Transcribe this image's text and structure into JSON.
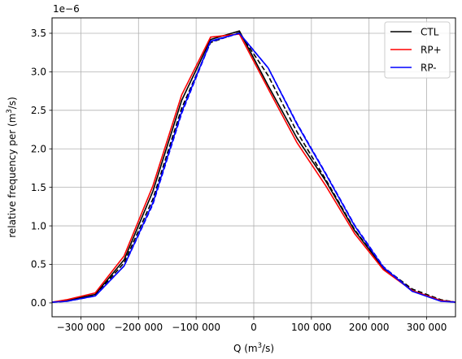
{
  "chart_data": {
    "type": "line",
    "title": "",
    "xlabel": "Q (m",
    "xlabel_sup": "3",
    "xlabel_tail": "/s)",
    "ylabel": "relative frequency per (m",
    "ylabel_sup": "3",
    "ylabel_tail": "/s)",
    "y_offset_label": "1e−6",
    "xlim": [
      -350000,
      350000
    ],
    "ylim": [
      -0.18,
      3.7
    ],
    "xticks": [
      -300000,
      -200000,
      -100000,
      0,
      100000,
      200000,
      300000
    ],
    "xtick_labels": [
      "−300 000",
      "−200 000",
      "−100 000",
      "0",
      "100 000",
      "200 000",
      "300 000"
    ],
    "yticks": [
      0.0,
      0.5,
      1.0,
      1.5,
      2.0,
      2.5,
      3.0,
      3.5
    ],
    "ytick_labels": [
      "0.0",
      "0.5",
      "1.0",
      "1.5",
      "2.0",
      "2.5",
      "3.0",
      "3.5"
    ],
    "grid": true,
    "legend_position": "top-right",
    "series": [
      {
        "name": "CTL",
        "color": "#000000",
        "style": "solid",
        "x": [
          -350000,
          -325000,
          -275000,
          -225000,
          -175000,
          -125000,
          -75000,
          -25000,
          25000,
          75000,
          125000,
          175000,
          225000,
          275000,
          325000,
          350000
        ],
        "y": [
          0.01,
          0.03,
          0.11,
          0.56,
          1.45,
          2.63,
          3.42,
          3.53,
          2.82,
          2.14,
          1.58,
          0.94,
          0.45,
          0.16,
          0.03,
          0.01
        ]
      },
      {
        "name": "",
        "color": "#000000",
        "style": "dashed",
        "x": [
          -350000,
          -325000,
          -275000,
          -225000,
          -175000,
          -125000,
          -75000,
          -25000,
          25000,
          75000,
          125000,
          175000,
          225000,
          275000,
          325000,
          350000
        ],
        "y": [
          0.01,
          0.02,
          0.1,
          0.52,
          1.35,
          2.53,
          3.38,
          3.51,
          2.95,
          2.22,
          1.6,
          0.95,
          0.46,
          0.18,
          0.04,
          0.01
        ]
      },
      {
        "name": "RP+",
        "color": "#ff0000",
        "style": "solid",
        "x": [
          -350000,
          -325000,
          -275000,
          -225000,
          -175000,
          -125000,
          -75000,
          -25000,
          25000,
          75000,
          125000,
          175000,
          225000,
          275000,
          325000,
          350000
        ],
        "y": [
          0.01,
          0.04,
          0.13,
          0.61,
          1.52,
          2.7,
          3.45,
          3.49,
          2.78,
          2.08,
          1.52,
          0.9,
          0.43,
          0.16,
          0.03,
          0.01
        ]
      },
      {
        "name": "RP-",
        "color": "#0000ff",
        "style": "solid",
        "x": [
          -350000,
          -325000,
          -275000,
          -225000,
          -175000,
          -125000,
          -75000,
          -25000,
          25000,
          75000,
          125000,
          175000,
          225000,
          275000,
          325000,
          350000
        ],
        "y": [
          0.01,
          0.02,
          0.09,
          0.48,
          1.3,
          2.48,
          3.4,
          3.5,
          3.05,
          2.32,
          1.67,
          1.0,
          0.46,
          0.15,
          0.02,
          0.01
        ]
      },
      {
        "name": "",
        "color": "#0000ff",
        "style": "dashed",
        "x": [
          -350000,
          -325000,
          -275000,
          -225000,
          -175000,
          -125000,
          -75000,
          -25000,
          25000,
          75000,
          125000,
          175000,
          225000,
          275000,
          325000,
          350000
        ],
        "y": [
          0.01,
          0.02,
          0.09,
          0.48,
          1.28,
          2.46,
          3.39,
          3.5,
          3.05,
          2.33,
          1.68,
          1.01,
          0.47,
          0.16,
          0.03,
          0.01
        ]
      }
    ]
  }
}
